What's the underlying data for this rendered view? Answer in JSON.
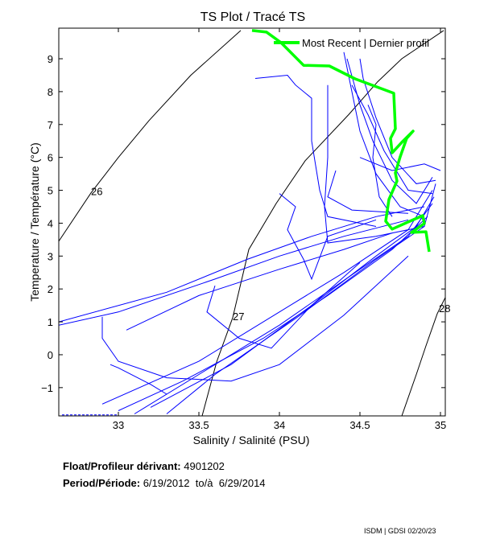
{
  "chart_data": {
    "type": "line",
    "title": "TS Plot / Tracé TS",
    "xlabel": "Salinity / Salinité (PSU)",
    "ylabel": "Temperature / Température (°C)",
    "xlim": [
      32.63,
      35.03
    ],
    "ylim": [
      -1.86,
      9.93
    ],
    "xticks": [
      33,
      33.5,
      34,
      34.5,
      35
    ],
    "xtick_labels": [
      "33",
      "33.5",
      "34",
      "34.5",
      "35"
    ],
    "yticks": [
      -1,
      0,
      1,
      2,
      3,
      4,
      5,
      6,
      7,
      8,
      9
    ],
    "ytick_labels": [
      "−1",
      "0",
      "1",
      "2",
      "3",
      "4",
      "5",
      "6",
      "7",
      "8",
      "9"
    ],
    "grid": false,
    "legend": {
      "label": "Most Recent | Dernier profil",
      "placement": "top-right"
    },
    "colors": {
      "profiles": "#0000ff",
      "recent": "#00ff00",
      "contour": "#000000"
    },
    "density_contours": [
      {
        "level": "26",
        "label_at": [
          32.83,
          4.85
        ],
        "points": [
          [
            32.63,
            3.45
          ],
          [
            32.83,
            4.92
          ],
          [
            33.0,
            6.0
          ],
          [
            33.19,
            7.12
          ],
          [
            33.45,
            8.5
          ],
          [
            33.76,
            9.86
          ]
        ]
      },
      {
        "level": "27",
        "label_at": [
          33.71,
          1.05
        ],
        "points": [
          [
            33.52,
            -1.86
          ],
          [
            33.61,
            -0.22
          ],
          [
            33.71,
            1.13
          ],
          [
            33.81,
            3.2
          ],
          [
            33.98,
            4.6
          ],
          [
            34.16,
            5.9
          ],
          [
            34.43,
            7.3
          ],
          [
            34.61,
            8.3
          ],
          [
            34.76,
            9.0
          ],
          [
            35.02,
            9.86
          ]
        ]
      },
      {
        "level": "28",
        "label_at": [
          34.99,
          1.3
        ],
        "points": [
          [
            34.76,
            -1.86
          ],
          [
            34.85,
            -0.6
          ],
          [
            34.91,
            0.27
          ],
          [
            34.98,
            1.25
          ],
          [
            35.03,
            1.74
          ]
        ]
      }
    ],
    "profiles": [
      [
        [
          33.1,
          -1.8
        ],
        [
          33.5,
          -0.6
        ],
        [
          34.0,
          0.9
        ],
        [
          34.5,
          2.6
        ],
        [
          34.8,
          3.6
        ],
        [
          34.95,
          4.6
        ]
      ],
      [
        [
          33.0,
          -1.7
        ],
        [
          33.4,
          -0.8
        ],
        [
          33.9,
          0.5
        ],
        [
          34.3,
          1.8
        ],
        [
          34.7,
          3.2
        ],
        [
          34.92,
          4.2
        ]
      ],
      [
        [
          33.3,
          -1.8
        ],
        [
          33.6,
          -0.6
        ],
        [
          34.1,
          1.1
        ],
        [
          34.6,
          2.9
        ],
        [
          34.9,
          3.9
        ],
        [
          34.97,
          5.2
        ]
      ],
      [
        [
          32.9,
          -1.5
        ],
        [
          33.5,
          -0.2
        ],
        [
          34.0,
          1.3
        ],
        [
          34.4,
          2.5
        ],
        [
          34.8,
          3.8
        ],
        [
          34.95,
          5.0
        ]
      ],
      [
        [
          33.2,
          -1.6
        ],
        [
          33.7,
          -0.3
        ],
        [
          34.2,
          1.5
        ],
        [
          34.6,
          3.0
        ],
        [
          34.85,
          3.9
        ],
        [
          34.96,
          4.8
        ]
      ],
      [
        [
          32.63,
          0.9
        ],
        [
          33.0,
          1.3
        ],
        [
          33.6,
          2.3
        ],
        [
          34.0,
          3.0
        ],
        [
          34.4,
          3.6
        ],
        [
          34.8,
          4.1
        ]
      ],
      [
        [
          32.63,
          1.0
        ],
        [
          33.3,
          1.9
        ],
        [
          33.8,
          2.9
        ],
        [
          34.2,
          3.6
        ],
        [
          34.6,
          4.2
        ],
        [
          34.9,
          4.5
        ]
      ],
      [
        [
          32.9,
          1.15
        ],
        [
          32.9,
          0.5
        ],
        [
          33.0,
          -0.2
        ],
        [
          33.3,
          -0.7
        ],
        [
          33.7,
          -0.8
        ],
        [
          34.0,
          -0.3
        ],
        [
          34.4,
          1.2
        ],
        [
          34.8,
          3.0
        ]
      ],
      [
        [
          33.05,
          0.75
        ],
        [
          33.5,
          1.8
        ],
        [
          34.0,
          2.6
        ],
        [
          34.4,
          3.2
        ],
        [
          34.7,
          3.7
        ]
      ],
      [
        [
          34.4,
          9.2
        ],
        [
          34.45,
          8.0
        ],
        [
          34.5,
          6.8
        ],
        [
          34.6,
          5.5
        ],
        [
          34.75,
          4.5
        ],
        [
          34.9,
          4.2
        ]
      ],
      [
        [
          34.42,
          9.0
        ],
        [
          34.5,
          7.6
        ],
        [
          34.58,
          6.5
        ],
        [
          34.7,
          5.3
        ],
        [
          34.85,
          4.6
        ],
        [
          34.95,
          5.4
        ]
      ],
      [
        [
          34.45,
          8.2
        ],
        [
          34.55,
          7.3
        ],
        [
          34.65,
          6.2
        ],
        [
          34.8,
          5.0
        ],
        [
          34.95,
          4.9
        ]
      ],
      [
        [
          33.85,
          8.4
        ],
        [
          34.05,
          8.5
        ],
        [
          34.1,
          8.2
        ],
        [
          34.2,
          7.8
        ],
        [
          34.2,
          6.5
        ],
        [
          34.25,
          5.0
        ],
        [
          34.3,
          4.2
        ],
        [
          34.6,
          3.9
        ]
      ],
      [
        [
          34.3,
          8.2
        ],
        [
          34.3,
          6.0
        ],
        [
          34.28,
          4.5
        ],
        [
          34.3,
          3.4
        ],
        [
          34.6,
          3.6
        ],
        [
          34.9,
          3.9
        ]
      ],
      [
        [
          34.55,
          7.6
        ],
        [
          34.6,
          7.0
        ],
        [
          34.58,
          6.0
        ],
        [
          34.62,
          4.8
        ],
        [
          34.7,
          4.2
        ]
      ],
      [
        [
          34.0,
          4.9
        ],
        [
          34.1,
          4.5
        ],
        [
          34.05,
          3.8
        ],
        [
          34.15,
          2.9
        ],
        [
          34.2,
          2.3
        ],
        [
          34.3,
          3.6
        ],
        [
          34.6,
          4.1
        ]
      ],
      [
        [
          33.6,
          2.1
        ],
        [
          33.55,
          1.3
        ],
        [
          33.75,
          0.5
        ],
        [
          33.95,
          0.2
        ],
        [
          34.2,
          1.5
        ],
        [
          34.5,
          2.8
        ]
      ],
      [
        [
          32.65,
          -1.83
        ],
        [
          33.0,
          -1.83
        ]
      ],
      [
        [
          34.5,
          6.0
        ],
        [
          34.7,
          5.6
        ],
        [
          34.9,
          5.8
        ],
        [
          35.0,
          5.6
        ]
      ],
      [
        [
          33.3,
          -1.2
        ],
        [
          33.2,
          -0.9
        ],
        [
          33.0,
          -0.4
        ],
        [
          32.95,
          -0.3
        ]
      ],
      [
        [
          34.35,
          5.6
        ],
        [
          34.3,
          4.8
        ],
        [
          34.45,
          4.4
        ],
        [
          34.8,
          4.3
        ]
      ],
      [
        [
          34.5,
          9.0
        ],
        [
          34.52,
          8.4
        ],
        [
          34.6,
          7.2
        ],
        [
          34.7,
          6.0
        ],
        [
          34.85,
          5.2
        ],
        [
          34.97,
          5.3
        ]
      ]
    ],
    "recent_profile": [
      [
        33.83,
        9.86
      ],
      [
        33.92,
        9.81
      ],
      [
        34.01,
        9.49
      ],
      [
        34.15,
        8.8
      ],
      [
        34.31,
        8.78
      ],
      [
        34.47,
        8.39
      ],
      [
        34.71,
        7.95
      ],
      [
        34.72,
        6.87
      ],
      [
        34.69,
        6.58
      ],
      [
        34.7,
        6.14
      ],
      [
        34.76,
        6.46
      ],
      [
        34.83,
        6.8
      ],
      [
        34.79,
        6.58
      ],
      [
        34.75,
        6.02
      ],
      [
        34.72,
        5.53
      ],
      [
        34.73,
        5.28
      ],
      [
        34.68,
        4.72
      ],
      [
        34.66,
        4.06
      ],
      [
        34.7,
        3.82
      ],
      [
        34.81,
        4.06
      ],
      [
        34.89,
        4.23
      ],
      [
        34.9,
        3.99
      ],
      [
        34.82,
        3.72
      ],
      [
        34.91,
        3.74
      ],
      [
        34.93,
        3.13
      ]
    ]
  },
  "info": {
    "float_label": "Float/Profileur dérivant:",
    "float_id": "4901202",
    "period_label": "Period/Période:",
    "start_date": "6/19/2012",
    "to_label": "to/à",
    "end_date": "6/29/2014"
  },
  "footer": "ISDM | GDSI 02/20/23"
}
